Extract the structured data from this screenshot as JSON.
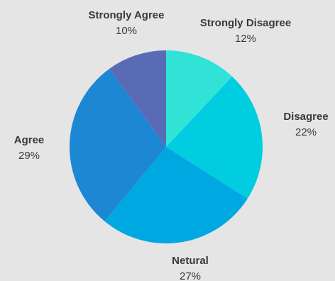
{
  "chart_data": {
    "type": "pie",
    "start_angle": 0,
    "direction": "clockwise",
    "slices": [
      {
        "name": "Strongly Disagree",
        "value": 12,
        "label": "12%",
        "color": "#30e3d6"
      },
      {
        "name": "Disagree",
        "value": 22,
        "label": "22%",
        "color": "#00cde0"
      },
      {
        "name": "Netural",
        "value": 27,
        "label": "27%",
        "color": "#00a8e2"
      },
      {
        "name": "Agree",
        "value": 29,
        "label": "29%",
        "color": "#1d87d4"
      },
      {
        "name": "Strongly Agree",
        "value": 10,
        "label": "10%",
        "color": "#5a6bb6"
      }
    ],
    "background": "#e5e5e5"
  }
}
